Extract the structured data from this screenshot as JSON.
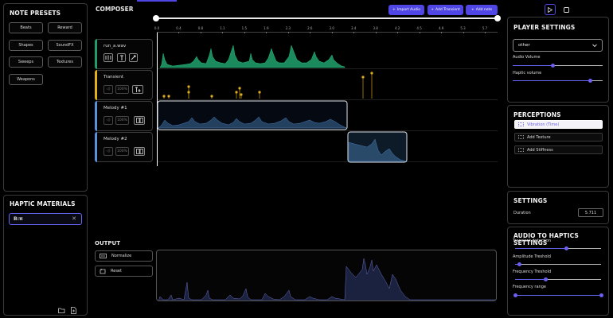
{
  "note_presets": {
    "title": "NOTE PRESETS",
    "buttons": [
      "Beats",
      "Reward",
      "Shapes",
      "SoundFX",
      "Sweeps",
      "Textures",
      "Weapons"
    ]
  },
  "haptic_materials": {
    "title": "HAPTIC MATERIALS",
    "search_value": "B:π"
  },
  "composer": {
    "title": "COMPOSER",
    "import_label": "Import Audio",
    "add_transient_label": "Add Transient",
    "add_note_label": "Add note",
    "ticks": [
      "0.0",
      "0.4",
      "0.8",
      "1.1",
      "1.5",
      "1.9",
      "2.3",
      "2.6",
      "3.0",
      "3.4",
      "3.8",
      "4.2",
      "4.5",
      "4.9",
      "5.3",
      "5.7"
    ],
    "tracks": [
      {
        "name": "run_a.wav",
        "color": "#1f9d6b"
      },
      {
        "name": "Transient",
        "color": "#e0b21a",
        "percent": "100%"
      },
      {
        "name": "Melody #1",
        "color": "#5b8fd8",
        "percent": "100%"
      },
      {
        "name": "Melody #2",
        "color": "#5b8fd8",
        "percent": "100%"
      }
    ]
  },
  "output": {
    "title": "OUTPUT",
    "normalize_label": "Normalize",
    "reset_label": "Reset"
  },
  "player_settings": {
    "title": "PLAYER SETTINGS",
    "select_value": "other",
    "audio_volume_label": "Audio Volume",
    "audio_volume": 0.45,
    "haptic_volume_label": "Haptic volume",
    "haptic_volume": 0.86
  },
  "perceptions": {
    "title": "PERCEPTIONS",
    "items": [
      "Vibration (Time)",
      "Add Texture",
      "Add Stiffness"
    ]
  },
  "settings": {
    "title": "SETTINGS",
    "duration_label": "Duration",
    "duration_value": "5.711"
  },
  "a2h": {
    "title": "AUDIO TO HAPTICS SETTINGS",
    "transient_label": "Transient detection",
    "transient_value": 0.6,
    "amplitude_label": "Amplitude Treshold",
    "amplitude_value": 0.05,
    "frequency_label": "Frequency Treshold",
    "frequency_value": 0.36,
    "range_label": "Frequency range",
    "range_values": [
      0.0,
      1.0
    ]
  },
  "colors": {
    "accent": "#4f46e5",
    "audio": "#1f9d6b",
    "transient": "#e0b21a",
    "melody": "#5b8fd8"
  }
}
